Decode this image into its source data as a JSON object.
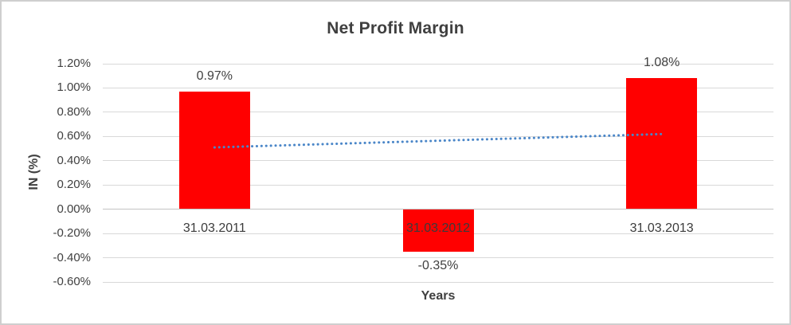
{
  "chart_data": {
    "type": "bar",
    "title": "Net Profit Margin",
    "xlabel": "Years",
    "ylabel": "IN (%)",
    "categories": [
      "31.03.2011",
      "31.03.2012",
      "31.03.2013"
    ],
    "values": [
      0.97,
      -0.35,
      1.08
    ],
    "data_labels": [
      "0.97%",
      "-0.35%",
      "1.08%"
    ],
    "ylim": [
      -0.6,
      1.2
    ],
    "yticks": [
      {
        "value": 1.2,
        "label": "1.20%"
      },
      {
        "value": 1.0,
        "label": "1.00%"
      },
      {
        "value": 0.8,
        "label": "0.80%"
      },
      {
        "value": 0.6,
        "label": "0.60%"
      },
      {
        "value": 0.4,
        "label": "0.40%"
      },
      {
        "value": 0.2,
        "label": "0.20%"
      },
      {
        "value": 0.0,
        "label": "0.00%"
      },
      {
        "value": -0.2,
        "label": "-0.20%"
      },
      {
        "value": -0.4,
        "label": "-0.40%"
      },
      {
        "value": -0.6,
        "label": "-0.60%"
      }
    ],
    "grid": true,
    "legend": false,
    "bar_color": "#ff0000",
    "gridline_color": "#d9d9d9",
    "axis_line_color": "#c3c3c3",
    "text_color": "#404040",
    "trendline": {
      "type": "linear",
      "style": "dotted",
      "color": "#4a86c8",
      "start_value": 0.51,
      "end_value": 0.62
    }
  }
}
